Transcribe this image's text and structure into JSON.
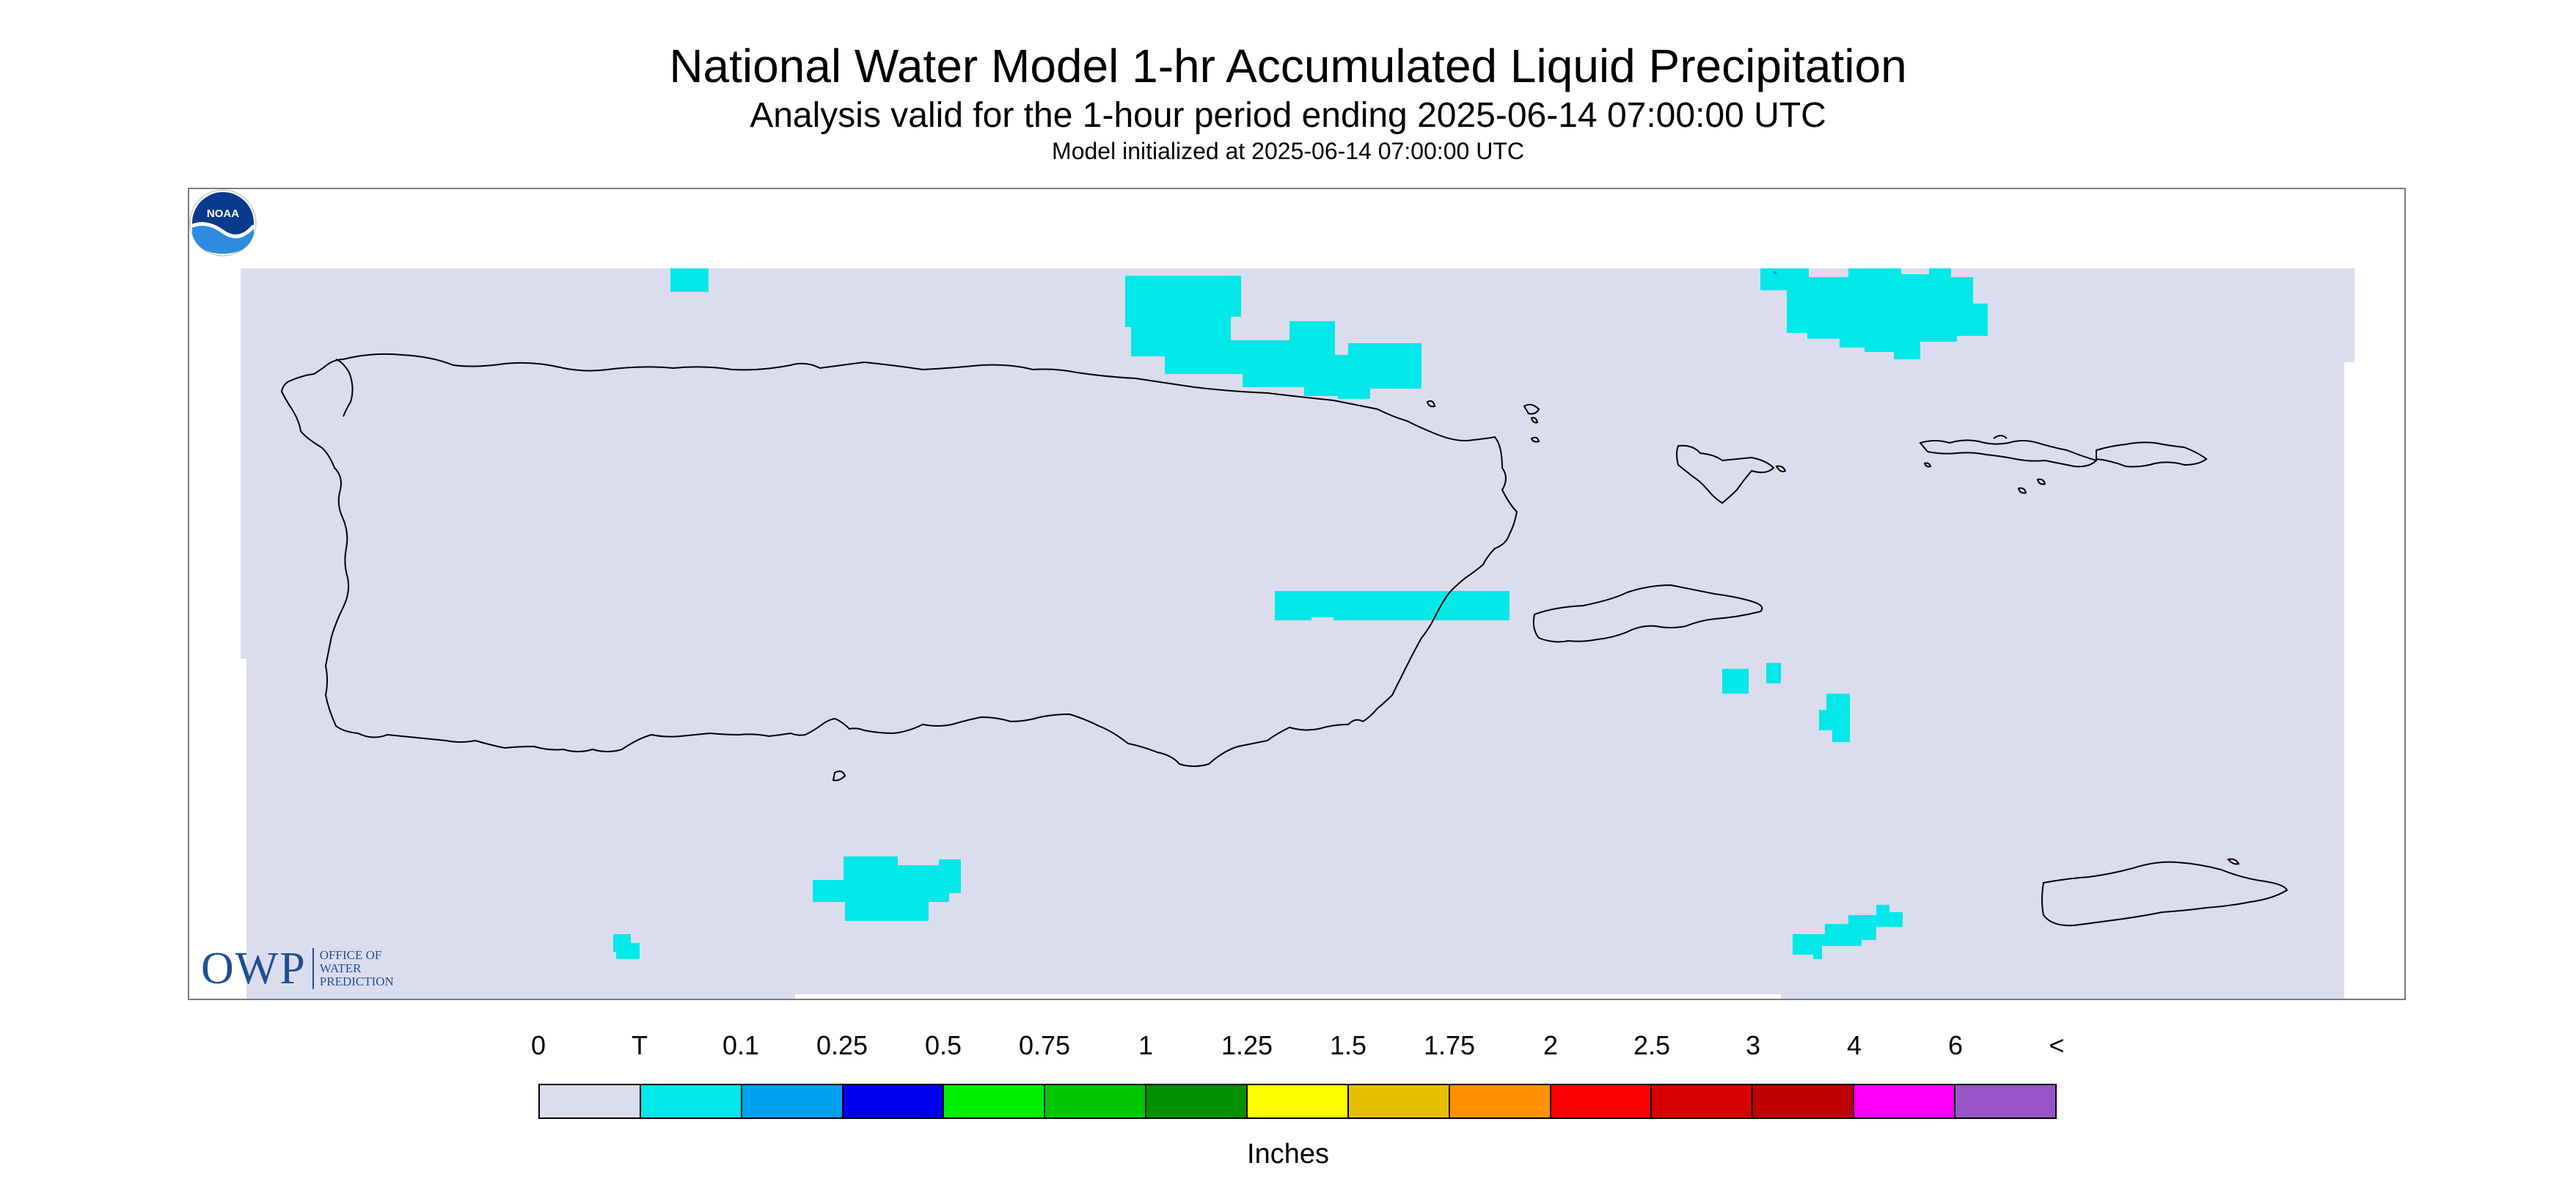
{
  "title": "National Water Model 1-hr Accumulated Liquid Precipitation",
  "subtitle": "Analysis valid for the 1-hour period ending 2025-06-14 07:00:00 UTC",
  "init_text": "Model initialized at 2025-06-14 07:00:00 UTC",
  "logos": {
    "owp_mark": "OWP",
    "owp_lines": [
      "OFFICE OF",
      "WATER",
      "PREDICTION"
    ],
    "noaa_text": "NOAA"
  },
  "legend": {
    "labels": [
      "0",
      "T",
      "0.1",
      "0.25",
      "0.5",
      "0.75",
      "1",
      "1.25",
      "1.5",
      "1.75",
      "2",
      "2.5",
      "3",
      "4",
      "6",
      "<"
    ],
    "colors": [
      "#dcdcef",
      "#00e8e8",
      "#00a0f0",
      "#0000f0",
      "#00f000",
      "#00c800",
      "#009000",
      "#ffff00",
      "#e6c000",
      "#ff9000",
      "#ff0000",
      "#d60000",
      "#c00000",
      "#ff00ff",
      "#9954c8"
    ],
    "units": "Inches"
  },
  "map": {
    "background_color": "#dcdcef",
    "precip_color": "#00e8e8",
    "coast_color": "#000000"
  }
}
